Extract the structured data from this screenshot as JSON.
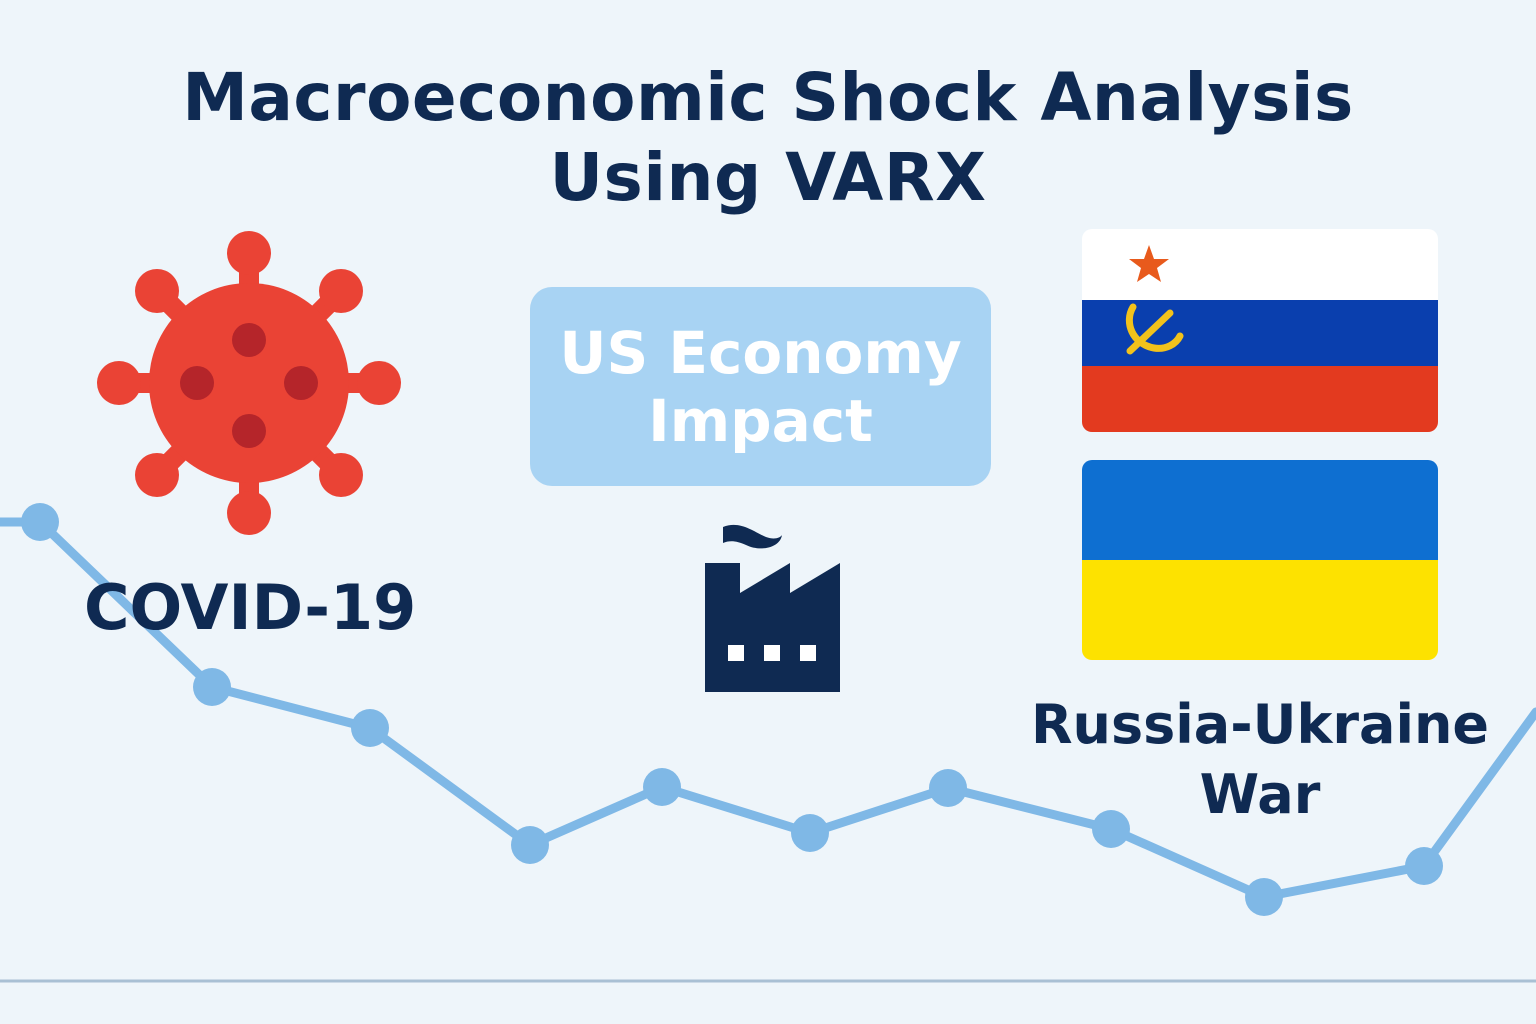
{
  "title": {
    "line1": "Macroeconomic Shock Analysis",
    "line2": "Using VARX"
  },
  "covid": {
    "label": "COVID-19",
    "icon": "virus-icon",
    "color": "#ea4335"
  },
  "center_box": {
    "line1": "US Economy",
    "line2": "Impact",
    "icon": "factory-icon"
  },
  "war": {
    "line1": "Russia-Ukraine",
    "line2": "War",
    "flags": [
      "russia-flag-icon",
      "ukraine-flag-icon"
    ]
  },
  "colors": {
    "title": "#0f2a52",
    "line": "#7fb8e6",
    "box": "#a8d3f3",
    "russia_white": "#ffffff",
    "russia_blue": "#0a3fae",
    "russia_red": "#e33a1f",
    "ukraine_blue": "#0e6fd1",
    "ukraine_yellow": "#fde200"
  }
}
